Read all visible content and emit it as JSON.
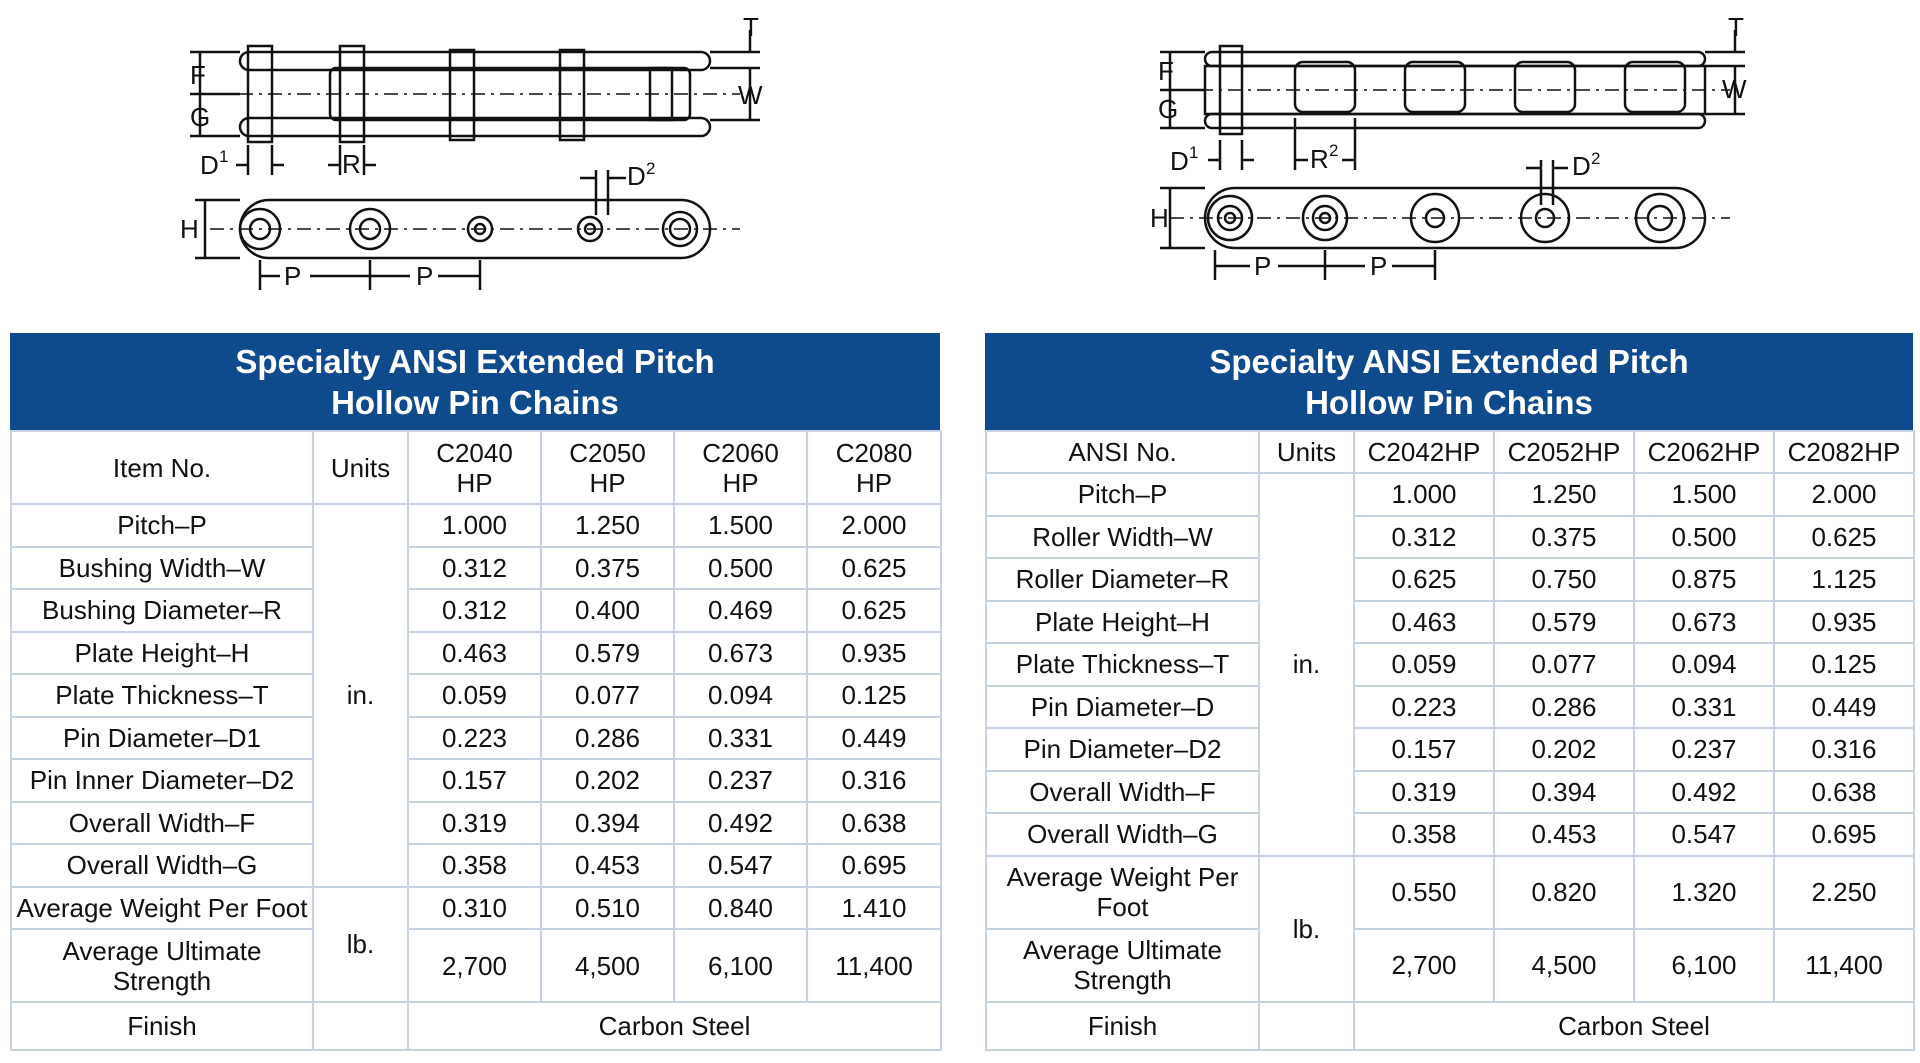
{
  "left": {
    "title_line1": "Specialty ANSI Extended Pitch",
    "title_line2": "Hollow Pin Chains",
    "header": {
      "label": "Item No.",
      "units": "Units",
      "cols": [
        [
          "C2040",
          "HP"
        ],
        [
          "C2050",
          "HP"
        ],
        [
          "C2060",
          "HP"
        ],
        [
          "C2080",
          "HP"
        ]
      ]
    },
    "rows": [
      {
        "label": [
          "Pitch–P"
        ],
        "values": [
          "1.000",
          "1.250",
          "1.500",
          "2.000"
        ]
      },
      {
        "label": [
          "Bushing Width–W"
        ],
        "values": [
          "0.312",
          "0.375",
          "0.500",
          "0.625"
        ]
      },
      {
        "label": [
          "Bushing Diameter–R"
        ],
        "values": [
          "0.312",
          "0.400",
          "0.469",
          "0.625"
        ]
      },
      {
        "label": [
          "Plate Height–H"
        ],
        "values": [
          "0.463",
          "0.579",
          "0.673",
          "0.935"
        ]
      },
      {
        "label": [
          "Plate Thickness–T"
        ],
        "values": [
          "0.059",
          "0.077",
          "0.094",
          "0.125"
        ]
      },
      {
        "label": [
          "Pin Diameter–D1"
        ],
        "values": [
          "0.223",
          "0.286",
          "0.331",
          "0.449"
        ]
      },
      {
        "label": [
          "Pin Inner Diameter–D2"
        ],
        "values": [
          "0.157",
          "0.202",
          "0.237",
          "0.316"
        ]
      },
      {
        "label": [
          "Overall Width–F"
        ],
        "values": [
          "0.319",
          "0.394",
          "0.492",
          "0.638"
        ]
      },
      {
        "label": [
          "Overall Width–G"
        ],
        "values": [
          "0.358",
          "0.453",
          "0.547",
          "0.695"
        ]
      },
      {
        "label": [
          "Average Weight Per Foot"
        ],
        "values": [
          "0.310",
          "0.510",
          "0.840",
          "1.410"
        ]
      },
      {
        "label": [
          "Average Ultimate",
          "Strength"
        ],
        "values": [
          "2,700",
          "4,500",
          "6,100",
          "11,400"
        ]
      }
    ],
    "units_in": "in.",
    "units_lb": "lb.",
    "finish_label": "Finish",
    "finish_value": "Carbon Steel"
  },
  "right": {
    "title_line1": "Specialty ANSI Extended Pitch",
    "title_line2": "Hollow Pin Chains",
    "header": {
      "label": "ANSI No.",
      "units": "Units",
      "cols": [
        "C2042HP",
        "C2052HP",
        "C2062HP",
        "C2082HP"
      ]
    },
    "rows": [
      {
        "label": [
          "Pitch–P"
        ],
        "values": [
          "1.000",
          "1.250",
          "1.500",
          "2.000"
        ]
      },
      {
        "label": [
          "Roller Width–W"
        ],
        "values": [
          "0.312",
          "0.375",
          "0.500",
          "0.625"
        ]
      },
      {
        "label": [
          "Roller Diameter–R"
        ],
        "values": [
          "0.625",
          "0.750",
          "0.875",
          "1.125"
        ]
      },
      {
        "label": [
          "Plate Height–H"
        ],
        "values": [
          "0.463",
          "0.579",
          "0.673",
          "0.935"
        ]
      },
      {
        "label": [
          "Plate Thickness–T"
        ],
        "values": [
          "0.059",
          "0.077",
          "0.094",
          "0.125"
        ]
      },
      {
        "label": [
          "Pin Diameter–D"
        ],
        "values": [
          "0.223",
          "0.286",
          "0.331",
          "0.449"
        ]
      },
      {
        "label": [
          "Pin Diameter–D2"
        ],
        "values": [
          "0.157",
          "0.202",
          "0.237",
          "0.316"
        ]
      },
      {
        "label": [
          "Overall Width–F"
        ],
        "values": [
          "0.319",
          "0.394",
          "0.492",
          "0.638"
        ]
      },
      {
        "label": [
          "Overall Width–G"
        ],
        "values": [
          "0.358",
          "0.453",
          "0.547",
          "0.695"
        ]
      },
      {
        "label": [
          "Average Weight Per",
          "Foot"
        ],
        "values": [
          "0.550",
          "0.820",
          "1.320",
          "2.250"
        ]
      },
      {
        "label": [
          "Average Ultimate",
          "Strength"
        ],
        "values": [
          "2,700",
          "4,500",
          "6,100",
          "11,400"
        ]
      }
    ],
    "units_in": "in.",
    "units_lb": "lb.",
    "finish_label": "Finish",
    "finish_value": "Carbon Steel"
  },
  "diagram_left": {
    "F": "F",
    "G": "G",
    "T": "T",
    "W": "W",
    "D": "D",
    "D_sup1": "1",
    "R": "R",
    "D2": "D",
    "D2_sup": "2",
    "H": "H",
    "P": "P"
  },
  "diagram_right": {
    "F": "F",
    "G": "G",
    "T": "T",
    "W": "W",
    "D": "D",
    "D_sup1": "1",
    "R": "R",
    "R_sup": "2",
    "D2": "D",
    "D2_sup": "2",
    "H": "H",
    "P": "P"
  }
}
